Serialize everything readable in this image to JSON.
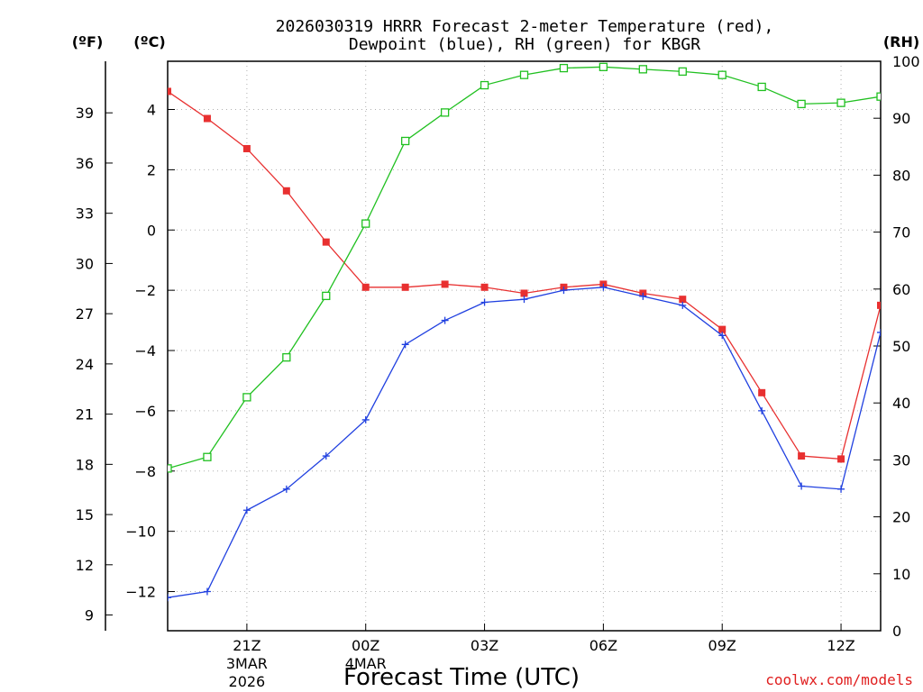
{
  "chart_data": {
    "type": "line",
    "title": "2026030319 HRRR Forecast 2-meter Temperature (red),",
    "subtitle": "Dewpoint (blue), RH (green) for KBGR",
    "xlabel": "Forecast Time (UTC)",
    "credit": "coolwx.com/models",
    "units": {
      "fahrenheit": "(ºF)",
      "celsius": "(ºC)",
      "rh": "(RH)"
    },
    "x": [
      19,
      20,
      21,
      22,
      23,
      24,
      25,
      26,
      27,
      28,
      29,
      30,
      31,
      32,
      33,
      34,
      35,
      36,
      37
    ],
    "x_ticks": [
      {
        "x": 21,
        "label": "21Z",
        "sub1": "3MAR",
        "sub2": "2026"
      },
      {
        "x": 24,
        "label": "00Z",
        "sub1": "4MAR",
        "sub2": ""
      },
      {
        "x": 27,
        "label": "03Z",
        "sub1": "",
        "sub2": ""
      },
      {
        "x": 30,
        "label": "06Z",
        "sub1": "",
        "sub2": ""
      },
      {
        "x": 33,
        "label": "09Z",
        "sub1": "",
        "sub2": ""
      },
      {
        "x": 36,
        "label": "12Z",
        "sub1": "",
        "sub2": ""
      }
    ],
    "xlim": [
      19,
      37
    ],
    "celsius_axis": {
      "ylim": [
        -13.3,
        5.6
      ],
      "ticks": [
        4,
        2,
        0,
        -2,
        -4,
        -6,
        -8,
        -10,
        -12
      ],
      "tick_labels": [
        "4",
        "2",
        "0",
        "−2",
        "−4",
        "−6",
        "−8",
        "−10",
        "−12"
      ]
    },
    "fahrenheit_axis": {
      "ticks": [
        39,
        36,
        33,
        30,
        27,
        24,
        21,
        18,
        15,
        12,
        9
      ]
    },
    "rh_axis": {
      "ylim": [
        0,
        100
      ],
      "ticks": [
        100,
        90,
        80,
        70,
        60,
        50,
        40,
        30,
        20,
        10,
        0
      ]
    },
    "grid": true,
    "series": [
      {
        "name": "Temperature",
        "axis": "celsius",
        "color": "#e83030",
        "marker": "filled-square",
        "values": [
          4.6,
          3.7,
          2.7,
          1.3,
          -0.4,
          -1.9,
          -1.9,
          -1.8,
          -1.9,
          -2.1,
          -1.9,
          -1.8,
          -2.1,
          -2.3,
          -3.3,
          -5.4,
          -7.5,
          -7.6,
          -2.5
        ]
      },
      {
        "name": "Dewpoint",
        "axis": "celsius",
        "color": "#2040e0",
        "marker": "plus",
        "values": [
          -12.2,
          -12.0,
          -9.3,
          -8.6,
          -7.5,
          -6.3,
          -3.8,
          -3.0,
          -2.4,
          -2.3,
          -2.0,
          -1.9,
          -2.2,
          -2.5,
          -3.5,
          -6.0,
          -8.5,
          -8.6,
          -3.4
        ]
      },
      {
        "name": "RH",
        "axis": "rh",
        "color": "#20c020",
        "marker": "open-square",
        "values": [
          28.5,
          30.5,
          41.0,
          48.0,
          58.8,
          71.5,
          86.0,
          91.0,
          95.8,
          97.6,
          98.8,
          99.0,
          98.6,
          98.2,
          97.6,
          95.5,
          92.5,
          92.7,
          93.8
        ]
      }
    ]
  }
}
